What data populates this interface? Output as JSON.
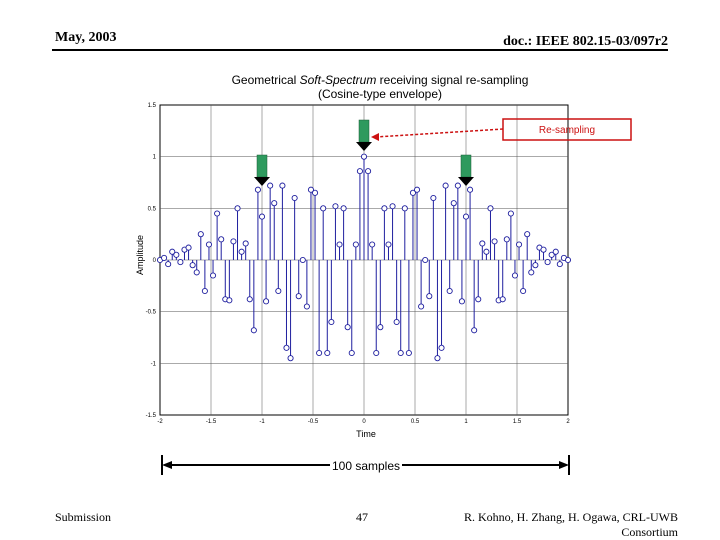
{
  "header": {
    "date": "May, 2003",
    "doc_id": "doc.: IEEE 802.15-03/097r2"
  },
  "chart_title": {
    "prefix": "Geometrical ",
    "emphasis": "Soft-Spectrum",
    "suffix": " receiving signal re-sampling",
    "line2": "(Cosine-type envelope)"
  },
  "annotation": {
    "resampling_label": "Re-sampling",
    "span_label": "100 samples"
  },
  "footer": {
    "left": "Submission",
    "page": "47",
    "right_line1": "R. Kohno, H. Zhang, H. Ogawa, CRL-UWB",
    "right_line2": "Consortium"
  },
  "colors": {
    "stem": "#1f1f9f",
    "marker": "#1f1f9f",
    "arrow": "#2e9a5e",
    "annotation": "#cc1111"
  },
  "chart_data": {
    "type": "stem",
    "xlabel": "Time",
    "ylabel": "Amplitude",
    "xlim": [
      -2,
      2
    ],
    "ylim": [
      -1.5,
      1.5
    ],
    "xticks": [
      -2,
      -1.5,
      -1,
      -0.5,
      0,
      0.5,
      1,
      1.5,
      2
    ],
    "xtick_labels": [
      "-2",
      "-1.5",
      "-1",
      "-0.5",
      "0",
      "0.5",
      "1",
      "1.5",
      "2"
    ],
    "yticks": [
      1.5,
      1,
      0.5,
      0,
      -0.5,
      -1,
      -1.5
    ],
    "ytick_labels": [
      "1.5",
      "1",
      "0.5",
      "0",
      "-0.5",
      "-1",
      "-1.5"
    ],
    "grid": true,
    "x": [
      -2.0,
      -1.96,
      -1.92,
      -1.88,
      -1.84,
      -1.8,
      -1.76,
      -1.72,
      -1.68,
      -1.64,
      -1.6,
      -1.56,
      -1.52,
      -1.48,
      -1.44,
      -1.4,
      -1.36,
      -1.32,
      -1.28,
      -1.24,
      -1.2,
      -1.16,
      -1.12,
      -1.08,
      -1.04,
      -1.0,
      -0.96,
      -0.92,
      -0.88,
      -0.84,
      -0.8,
      -0.76,
      -0.72,
      -0.68,
      -0.64,
      -0.6,
      -0.56,
      -0.52,
      -0.48,
      -0.44,
      -0.4,
      -0.36,
      -0.32,
      -0.28,
      -0.24,
      -0.2,
      -0.16,
      -0.12,
      -0.08,
      -0.04,
      0.0,
      0.04,
      0.08,
      0.12,
      0.16,
      0.2,
      0.24,
      0.28,
      0.32,
      0.36,
      0.4,
      0.44,
      0.48,
      0.52,
      0.56,
      0.6,
      0.64,
      0.68,
      0.72,
      0.76,
      0.8,
      0.84,
      0.88,
      0.92,
      0.96,
      1.0,
      1.04,
      1.08,
      1.12,
      1.16,
      1.2,
      1.24,
      1.28,
      1.32,
      1.36,
      1.4,
      1.44,
      1.48,
      1.52,
      1.56,
      1.6,
      1.64,
      1.68,
      1.72,
      1.76,
      1.8,
      1.84,
      1.88,
      1.92,
      1.96,
      2.0
    ],
    "values": [
      0.0,
      0.02,
      -0.04,
      0.08,
      0.05,
      -0.02,
      0.1,
      0.12,
      -0.05,
      -0.12,
      0.25,
      -0.3,
      0.15,
      -0.15,
      0.45,
      0.2,
      -0.38,
      -0.39,
      0.18,
      0.5,
      0.08,
      0.16,
      -0.38,
      -0.68,
      0.68,
      0.42,
      -0.4,
      0.72,
      0.55,
      -0.3,
      0.72,
      -0.85,
      -0.95,
      0.6,
      -0.35,
      0.0,
      -0.45,
      0.68,
      0.65,
      -0.9,
      0.5,
      -0.9,
      -0.6,
      0.52,
      0.15,
      0.5,
      -0.65,
      -0.9,
      0.15,
      0.86,
      1.0,
      0.86,
      0.15,
      -0.9,
      -0.65,
      0.5,
      0.15,
      0.52,
      -0.6,
      -0.9,
      0.5,
      -0.9,
      0.65,
      0.68,
      -0.45,
      0.0,
      -0.35,
      0.6,
      -0.95,
      -0.85,
      0.72,
      -0.3,
      0.55,
      0.72,
      -0.4,
      0.42,
      0.68,
      -0.68,
      -0.38,
      0.16,
      0.08,
      0.5,
      0.18,
      -0.39,
      -0.38,
      0.2,
      0.45,
      -0.15,
      0.15,
      -0.3,
      0.25,
      -0.12,
      -0.05,
      0.12,
      0.1,
      -0.02,
      0.05,
      0.08,
      -0.04,
      0.02,
      0.0
    ],
    "resample_marks": [
      -1.0,
      0.0,
      1.0
    ]
  }
}
